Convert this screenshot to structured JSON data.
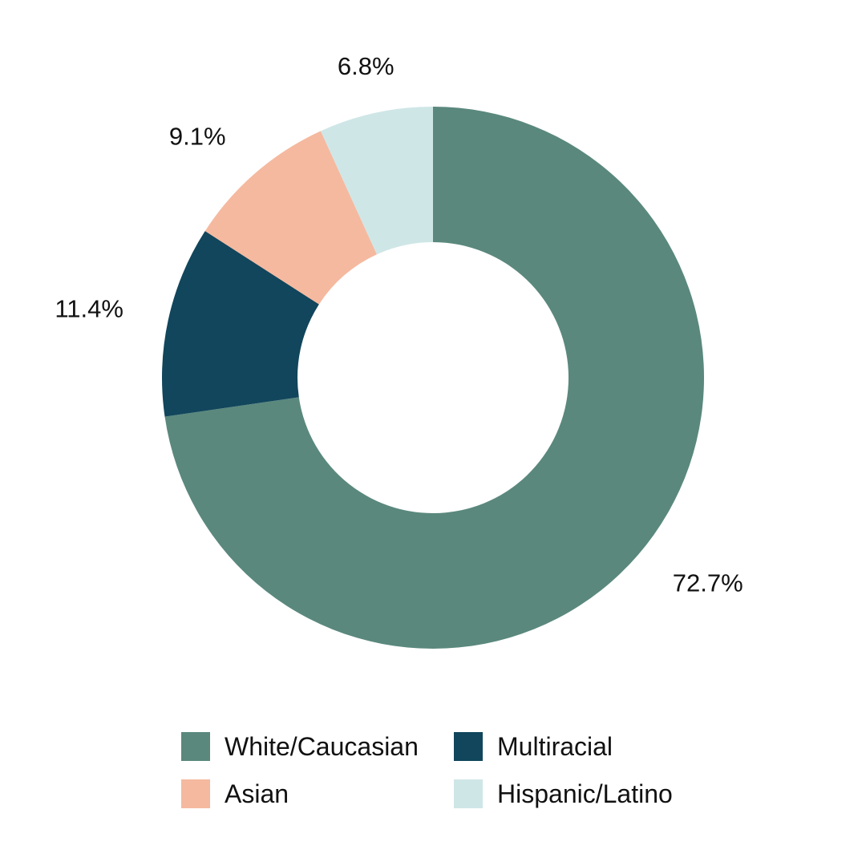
{
  "chart_data": {
    "type": "pie",
    "variant": "donut",
    "title": "",
    "categories": [
      "White/Caucasian",
      "Multiracial",
      "Asian",
      "Hispanic/Latino"
    ],
    "values": [
      72.7,
      11.4,
      9.1,
      6.8
    ],
    "value_labels": [
      "72.7%",
      "11.4%",
      "9.1%",
      "6.8%"
    ],
    "colors": [
      "#5a887d",
      "#11465c",
      "#f5b99f",
      "#cfe6e7"
    ],
    "legend_position": "bottom",
    "legend_order": [
      {
        "name": "White/Caucasian",
        "color": "#5a887d"
      },
      {
        "name": "Multiracial",
        "color": "#11465c"
      },
      {
        "name": "Asian",
        "color": "#f5b99f"
      },
      {
        "name": "Hispanic/Latino",
        "color": "#cfe6e7"
      }
    ]
  }
}
